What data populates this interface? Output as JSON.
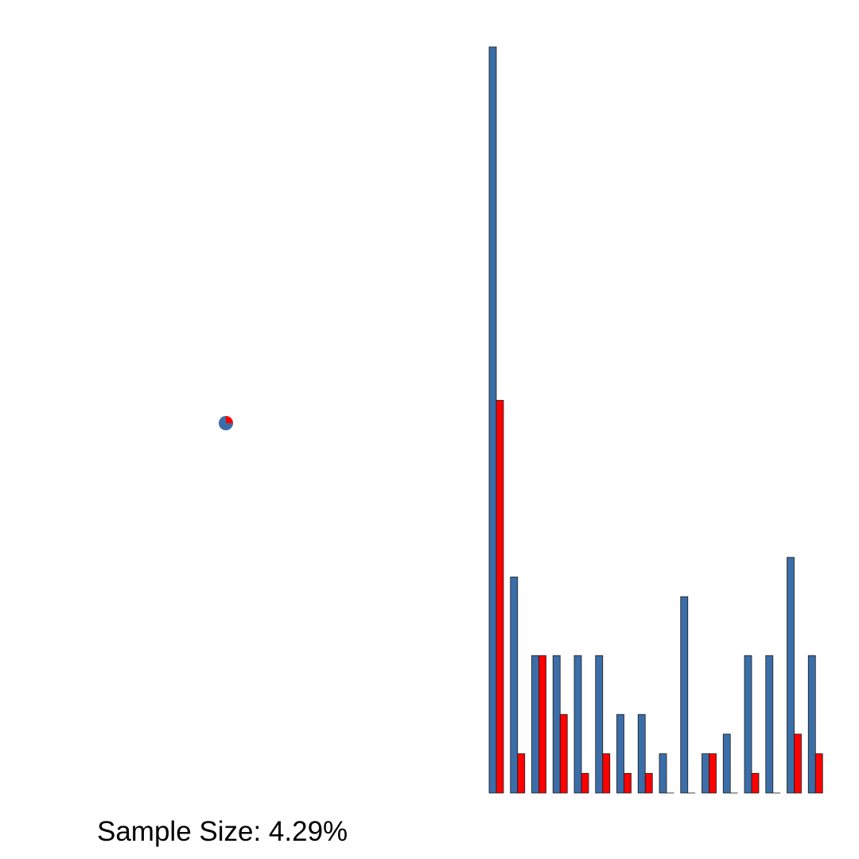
{
  "sample_size": {
    "label": "Sample Size: 4.29%"
  },
  "colors": {
    "series_a": "#3b6ea8",
    "series_b": "#ff0000",
    "outline": "#1a1a1a"
  },
  "chart_data": [
    {
      "type": "pie",
      "slices": [
        {
          "series": "series_a",
          "value": 0.75
        },
        {
          "series": "series_b",
          "value": 0.25
        }
      ]
    },
    {
      "type": "bar",
      "grid": false,
      "ylim": [
        0,
        38
      ],
      "series": [
        {
          "values": [
            38,
            11,
            7,
            7,
            7,
            7,
            4,
            4,
            2,
            10,
            2,
            3,
            7,
            7,
            12,
            7
          ]
        },
        {
          "values": [
            20,
            2,
            7,
            4,
            1,
            2,
            1,
            1,
            0,
            0,
            2,
            0,
            1,
            0,
            3,
            2
          ]
        }
      ]
    }
  ]
}
